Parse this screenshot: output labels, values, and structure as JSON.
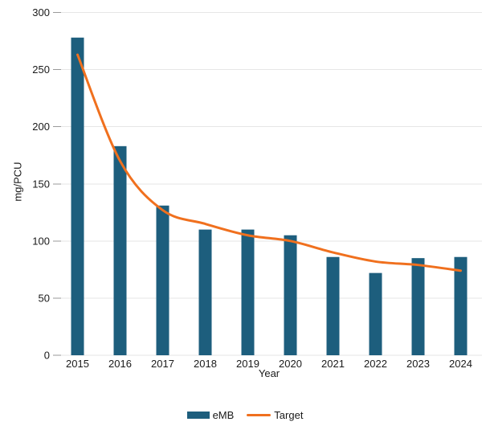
{
  "chart_data": {
    "type": "bar",
    "title": "",
    "categories": [
      "2015",
      "2016",
      "2017",
      "2018",
      "2019",
      "2020",
      "2021",
      "2022",
      "2023",
      "2024"
    ],
    "series": [
      {
        "name": "eMB",
        "type": "bar",
        "color": "#1d5e7d",
        "values": [
          278,
          183,
          131,
          110,
          110,
          105,
          86,
          72,
          85,
          86
        ]
      },
      {
        "name": "Target",
        "type": "line",
        "color": "#f0701e",
        "values": [
          263,
          170,
          127,
          115,
          105,
          100,
          90,
          82,
          79,
          74
        ]
      }
    ],
    "xlabel": "Year",
    "ylabel": "mg/PCU",
    "ylim": [
      0,
      300
    ],
    "yticks": [
      0,
      50,
      100,
      150,
      200,
      250,
      300
    ],
    "grid": true,
    "legend_position": "bottom"
  },
  "colors": {
    "grid": "#e6e6e6",
    "tick": "#9a9a9a",
    "text": "#1a1a1a",
    "background": "#ffffff"
  }
}
